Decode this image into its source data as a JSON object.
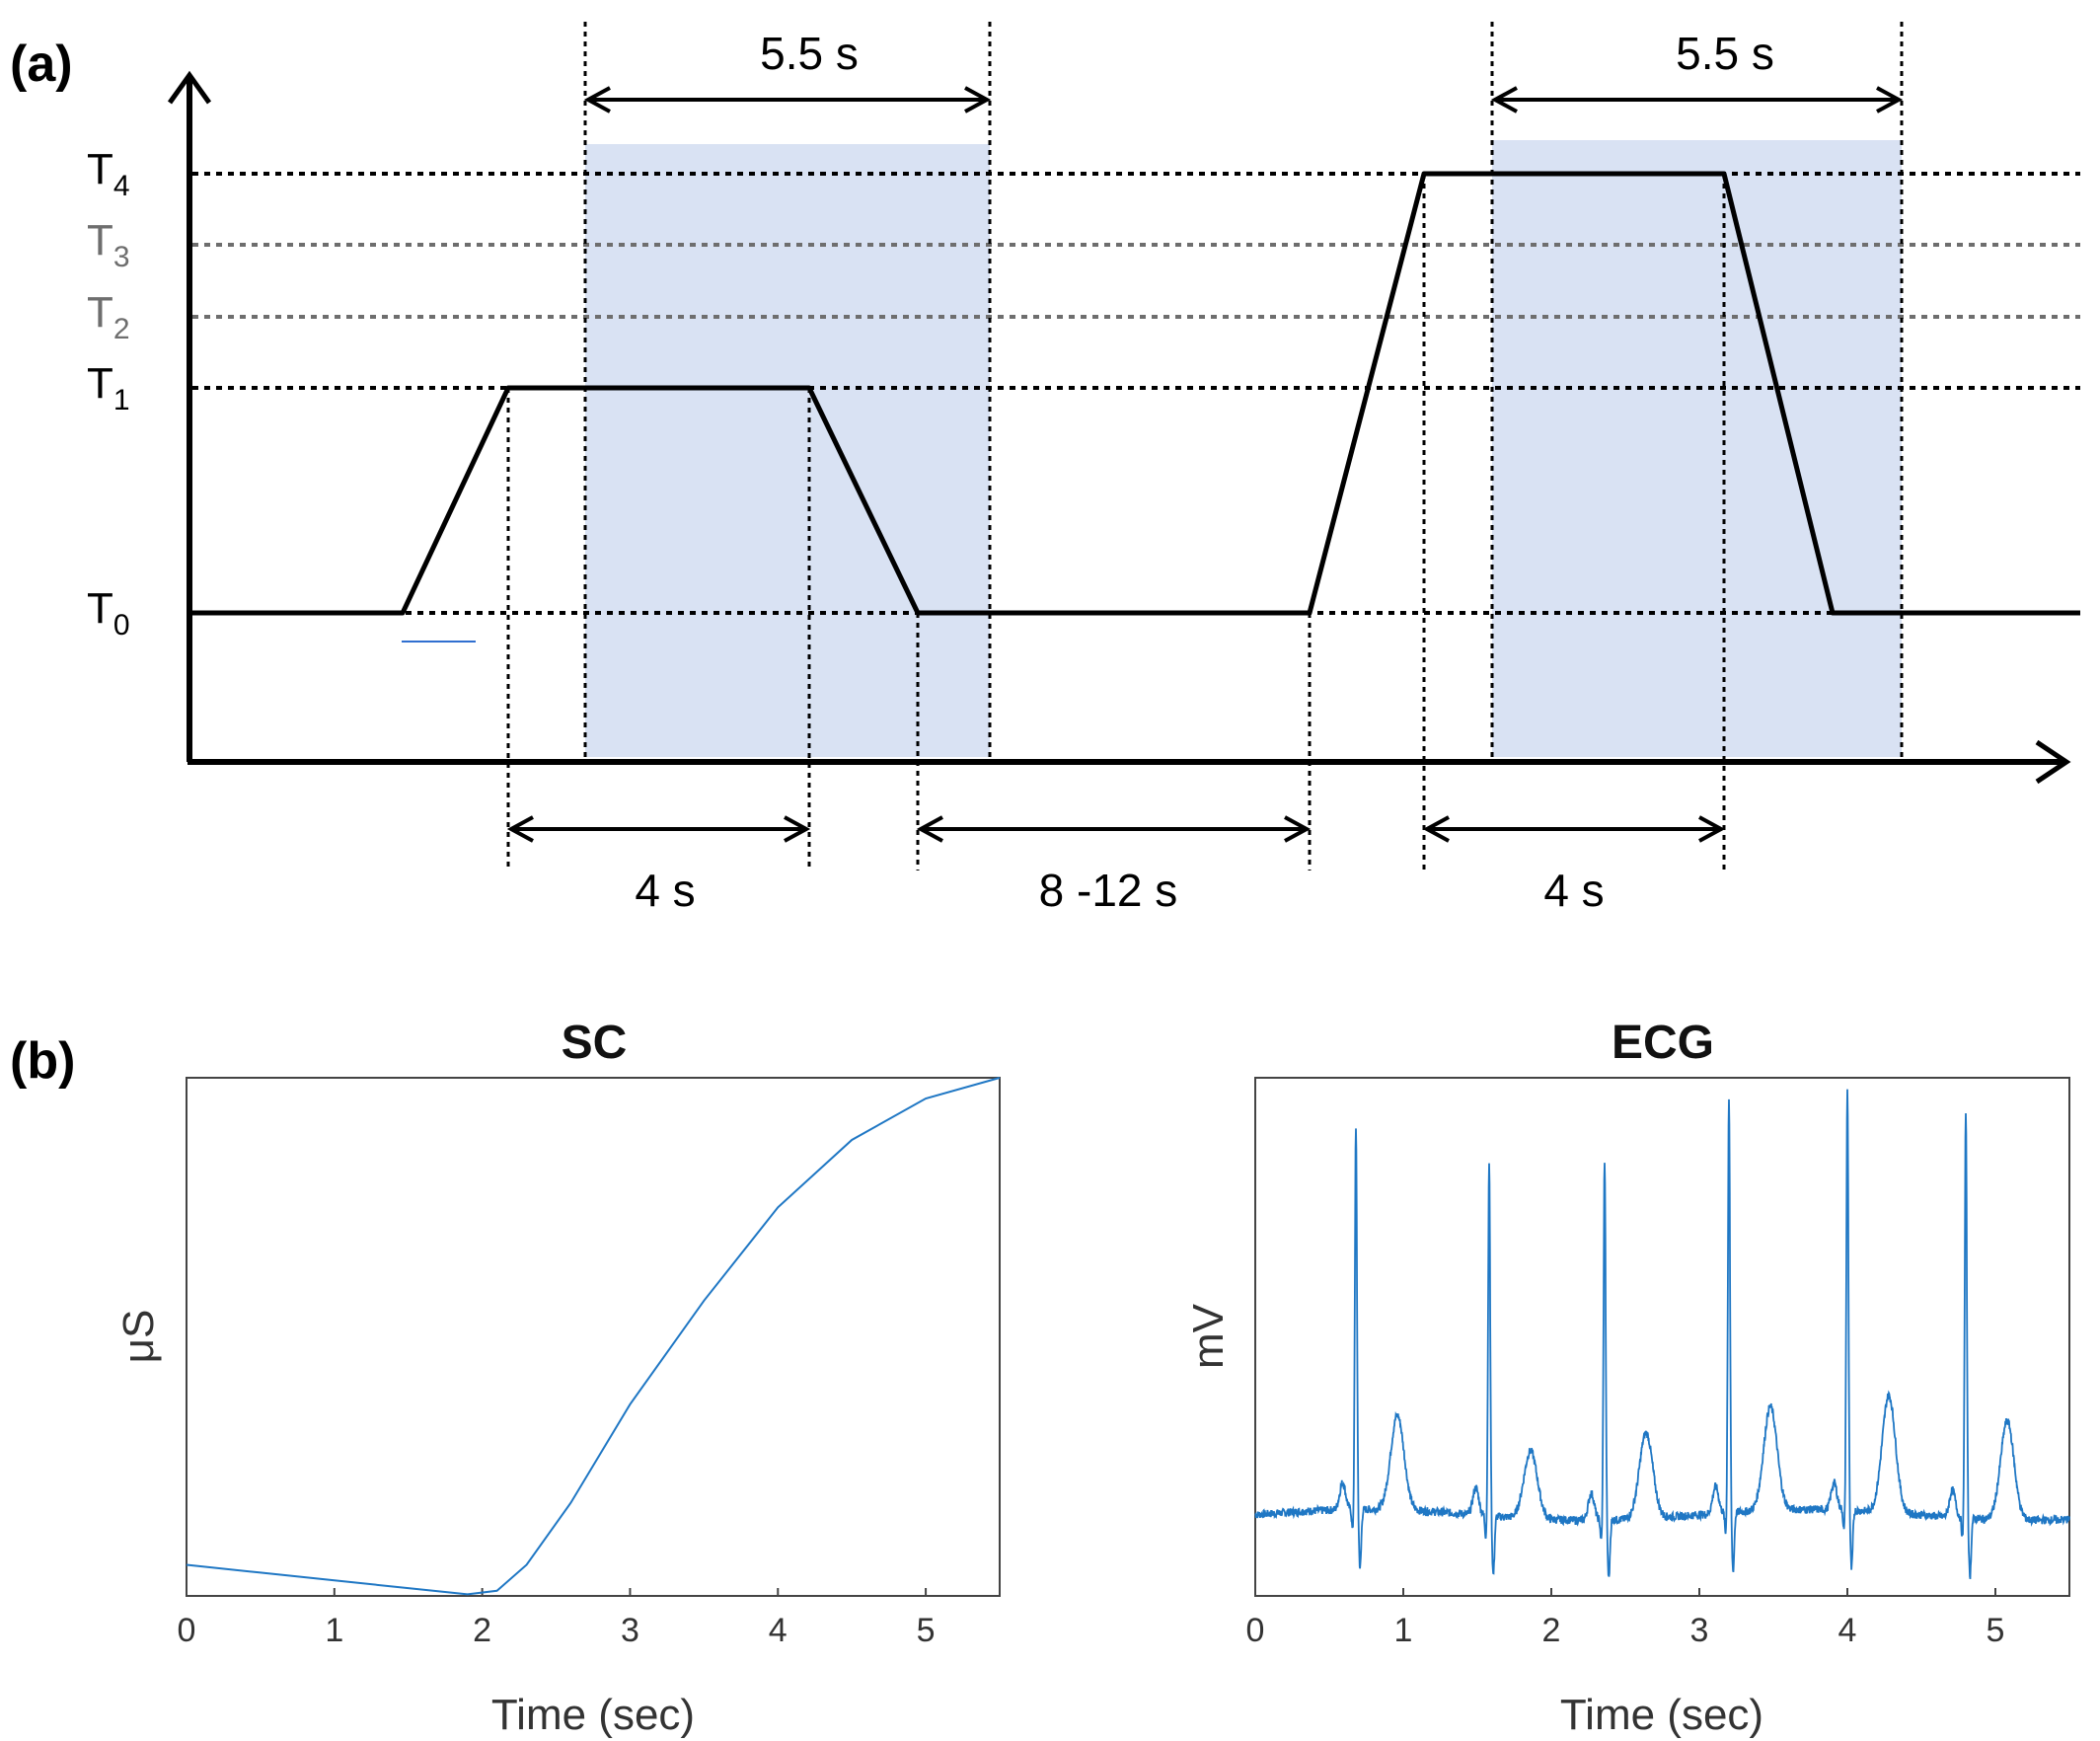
{
  "panel_a": {
    "label": "(a)",
    "levels": [
      {
        "base": "T",
        "sub": "0"
      },
      {
        "base": "T",
        "sub": "1"
      },
      {
        "base": "T",
        "sub": "2"
      },
      {
        "base": "T",
        "sub": "3"
      },
      {
        "base": "T",
        "sub": "4"
      }
    ],
    "durations": {
      "window_top_1": "5.5 s",
      "window_top_2": "5.5 s",
      "plateau_1": "4 s",
      "interval": "8 -12 s",
      "plateau_2": "4 s"
    },
    "colors": {
      "shade": "#d9e2f3",
      "line": "#000000",
      "level_dark": "#000000",
      "level_grey": "#6e6e6e",
      "legend_line": "#2f6fd0"
    }
  },
  "panel_b": {
    "label": "(b)",
    "chart_data": [
      {
        "type": "line",
        "title": "SC",
        "xlabel": "Time (sec)",
        "ylabel": "μS",
        "xlim": [
          0,
          5.5
        ],
        "ylim": [
          0,
          1
        ],
        "xticks": [
          "0",
          "1",
          "2",
          "3",
          "4",
          "5"
        ],
        "color": "#1f77c4",
        "x": [
          0,
          0.5,
          1.0,
          1.5,
          1.9,
          2.1,
          2.3,
          2.6,
          3.0,
          3.5,
          4.0,
          4.5,
          5.0,
          5.5
        ],
        "y": [
          0.06,
          0.045,
          0.03,
          0.015,
          0.003,
          0.01,
          0.06,
          0.18,
          0.37,
          0.57,
          0.75,
          0.88,
          0.96,
          1.0
        ]
      },
      {
        "type": "line",
        "title": "ECG",
        "xlabel": "Time (sec)",
        "ylabel": "mV",
        "xlim": [
          0,
          5.5
        ],
        "ylim": [
          -0.15,
          1.0
        ],
        "xticks": [
          "0",
          "1",
          "2",
          "3",
          "4",
          "5"
        ],
        "color": "#1f77c4",
        "baseline": 0.03,
        "beats": [
          {
            "r": 0.68,
            "r_amp": 0.88,
            "t_amp": 0.24
          },
          {
            "r": 1.58,
            "r_amp": 0.81,
            "t_amp": 0.18
          },
          {
            "r": 2.36,
            "r_amp": 0.83,
            "t_amp": 0.22
          },
          {
            "r": 3.2,
            "r_amp": 0.95,
            "t_amp": 0.26
          },
          {
            "r": 4.0,
            "r_amp": 0.96,
            "t_amp": 0.29
          },
          {
            "r": 4.8,
            "r_amp": 0.93,
            "t_amp": 0.25
          }
        ]
      }
    ]
  }
}
